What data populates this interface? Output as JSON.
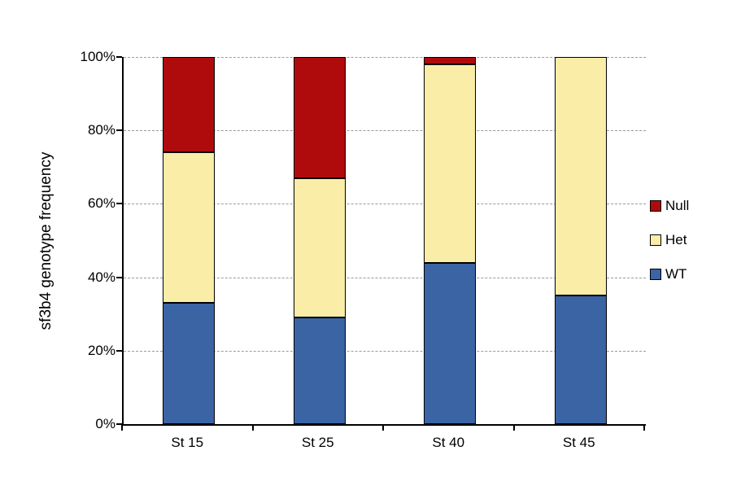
{
  "chart_data": {
    "type": "bar",
    "stacked": true,
    "title": "",
    "ylabel": "sf3b4 genotype frequency",
    "xlabel": "",
    "categories": [
      "St 15",
      "St 25",
      "St 40",
      "St 45"
    ],
    "series": [
      {
        "name": "WT",
        "color": "#3B64A5",
        "values": [
          33,
          29,
          44,
          35
        ]
      },
      {
        "name": "Het",
        "color": "#F9EDA8",
        "values": [
          41,
          38,
          54,
          65
        ]
      },
      {
        "name": "Null",
        "color": "#AF0B0D",
        "values": [
          26,
          33,
          2,
          0
        ]
      }
    ],
    "ylim": [
      0,
      100
    ],
    "y_ticks": [
      "100%",
      "80%",
      "60%",
      "40%",
      "20%",
      "0%"
    ],
    "grid": "horizontal-dashed",
    "gridline_color": "#9a9a9a",
    "legend": {
      "position": "right",
      "entries": [
        "Null",
        "Het",
        "WT"
      ]
    }
  }
}
